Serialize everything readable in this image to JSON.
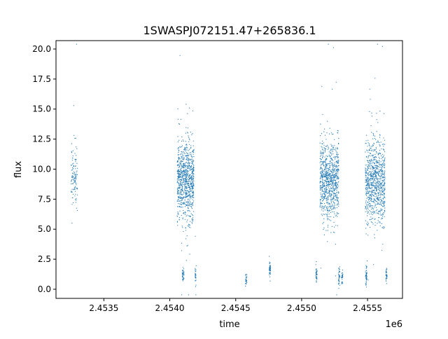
{
  "chart_data": {
    "type": "scatter",
    "title": "1SWASPJ072151.47+265836.1",
    "xlabel": "time",
    "ylabel": "flux",
    "x_offset_label": "1e6",
    "xlim": [
      2453137,
      2455765
    ],
    "ylim": [
      -0.76,
      20.7
    ],
    "x_ticks": [
      2453500,
      2454000,
      2454500,
      2455000,
      2455500
    ],
    "x_tick_labels": [
      "2.4535",
      "2.4540",
      "2.4545",
      "2.4550",
      "2.4555"
    ],
    "y_ticks": [
      0,
      2.5,
      5,
      7.5,
      10,
      12.5,
      15,
      17.5,
      20
    ],
    "y_tick_labels": [
      "0.0",
      "2.5",
      "5.0",
      "7.5",
      "10.0",
      "12.5",
      "15.0",
      "17.5",
      "20.0"
    ],
    "grid": false,
    "marker_color": "#1f77b4",
    "clusters": [
      {
        "time_range": [
          2453252,
          2453300
        ],
        "flux_center": 9.5,
        "flux_spread": 1.3,
        "count": 120
      },
      {
        "time_range": [
          2454056,
          2454183
        ],
        "flux_center": 9.0,
        "flux_spread": 1.6,
        "count": 900
      },
      {
        "time_range": [
          2454095,
          2454108
        ],
        "flux_center": 1.2,
        "flux_spread": 0.25,
        "count": 40
      },
      {
        "time_range": [
          2454192,
          2454200
        ],
        "flux_center": 1.2,
        "flux_spread": 0.45,
        "count": 30
      },
      {
        "time_range": [
          2454574,
          2454584
        ],
        "flux_center": 0.8,
        "flux_spread": 0.25,
        "count": 30
      },
      {
        "time_range": [
          2454754,
          2454764
        ],
        "flux_center": 1.6,
        "flux_spread": 0.35,
        "count": 50
      },
      {
        "time_range": [
          2455107,
          2455117
        ],
        "flux_center": 1.3,
        "flux_spread": 0.3,
        "count": 40
      },
      {
        "time_range": [
          2455139,
          2455282
        ],
        "flux_center": 9.0,
        "flux_spread": 1.6,
        "count": 900
      },
      {
        "time_range": [
          2455279,
          2455290
        ],
        "flux_center": 1.2,
        "flux_spread": 0.4,
        "count": 40
      },
      {
        "time_range": [
          2455303,
          2455313
        ],
        "flux_center": 1.0,
        "flux_spread": 0.25,
        "count": 30
      },
      {
        "time_range": [
          2455483,
          2455632
        ],
        "flux_center": 9.0,
        "flux_spread": 1.7,
        "count": 900
      },
      {
        "time_range": [
          2455485,
          2455495
        ],
        "flux_center": 1.0,
        "flux_spread": 0.35,
        "count": 50
      },
      {
        "time_range": [
          2455638,
          2455648
        ],
        "flux_center": 1.2,
        "flux_spread": 0.25,
        "count": 30
      }
    ]
  }
}
